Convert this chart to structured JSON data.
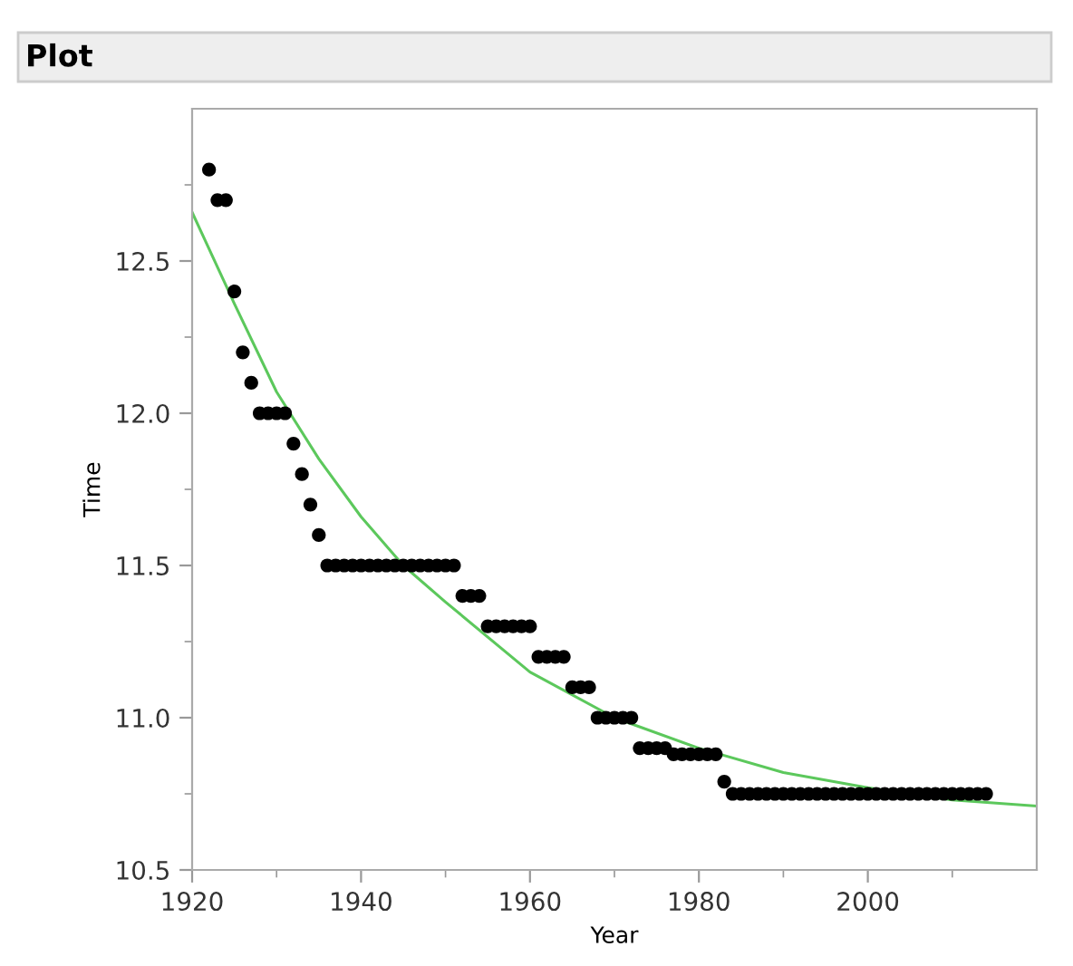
{
  "chart_data": {
    "type": "scatter",
    "title": "Plot",
    "xlabel": "Year",
    "ylabel": "Time",
    "xlim": [
      1920,
      2020
    ],
    "ylim": [
      10.5,
      13.0
    ],
    "xticks": [
      1920,
      {
        "value": 1930,
        "label": null
      },
      1940,
      {
        "value": 1950,
        "label": null
      },
      1960,
      {
        "value": 1970,
        "label": null
      },
      1980,
      {
        "value": 1990,
        "label": null
      },
      2000,
      {
        "value": 2010,
        "label": null
      }
    ],
    "yticks": [
      10.5,
      {
        "value": 10.75,
        "label": null
      },
      {
        "value": 11.0,
        "label": "11.0"
      },
      {
        "value": 11.25,
        "label": null
      },
      11.5,
      {
        "value": 11.75,
        "label": null
      },
      {
        "value": 12.0,
        "label": "12.0"
      },
      {
        "value": 12.25,
        "label": null
      },
      12.5,
      {
        "value": 12.75,
        "label": null
      }
    ],
    "grid": false,
    "marker": "circle",
    "series": [
      {
        "color": "#000000",
        "x": [
          1922,
          1923,
          1924,
          1925,
          1926,
          1927,
          1928,
          1929,
          1930,
          1931,
          1932,
          1933,
          1934,
          1935,
          1936,
          1937,
          1938,
          1939,
          1940,
          1941,
          1942,
          1943,
          1944,
          1945,
          1946,
          1947,
          1948,
          1949,
          1950,
          1951,
          1952,
          1953,
          1954,
          1955,
          1956,
          1957,
          1958,
          1959,
          1960,
          1961,
          1962,
          1963,
          1964,
          1965,
          1966,
          1967,
          1968,
          1969,
          1970,
          1971,
          1972,
          1973,
          1974,
          1975,
          1976,
          1977,
          1978,
          1979,
          1980,
          1981,
          1982,
          1983,
          1984,
          1985,
          1986,
          1987,
          1988,
          1989,
          1990,
          1991,
          1992,
          1993,
          1994,
          1995,
          1996,
          1997,
          1998,
          1999,
          2000,
          2001,
          2002,
          2003,
          2004,
          2005,
          2006,
          2007,
          2008,
          2009,
          2010,
          2011,
          2012,
          2013,
          2014
        ],
        "values": [
          12.8,
          12.7,
          12.7,
          12.4,
          12.2,
          12.1,
          12.0,
          12.0,
          12.0,
          12.0,
          11.9,
          11.8,
          11.7,
          11.6,
          11.5,
          11.5,
          11.5,
          11.5,
          11.5,
          11.5,
          11.5,
          11.5,
          11.5,
          11.5,
          11.5,
          11.5,
          11.5,
          11.5,
          11.5,
          11.5,
          11.4,
          11.4,
          11.4,
          11.3,
          11.3,
          11.3,
          11.3,
          11.3,
          11.3,
          11.2,
          11.2,
          11.2,
          11.2,
          11.1,
          11.1,
          11.1,
          11.0,
          11.0,
          11.0,
          11.0,
          11.0,
          10.9,
          10.9,
          10.9,
          10.9,
          10.88,
          10.88,
          10.88,
          10.88,
          10.88,
          10.88,
          10.79,
          10.75,
          10.75,
          10.75,
          10.75,
          10.75,
          10.75,
          10.75,
          10.75,
          10.75,
          10.75,
          10.75,
          10.75,
          10.75,
          10.75,
          10.75,
          10.75,
          10.75,
          10.75,
          10.75,
          10.75,
          10.75,
          10.75,
          10.75,
          10.75,
          10.75,
          10.75,
          10.75,
          10.75,
          10.75,
          10.75,
          10.75
        ]
      },
      {
        "type": "line",
        "color": "#5cc85c",
        "marker": "none",
        "line_style": "solid",
        "x": [
          1920,
          1925,
          1930,
          1935,
          1940,
          1945,
          1950,
          1960,
          1970,
          1980,
          1990,
          2000,
          2010,
          2020
        ],
        "values": [
          12.66,
          12.36,
          12.07,
          11.85,
          11.66,
          11.5,
          11.38,
          11.15,
          11.0,
          10.9,
          10.82,
          10.77,
          10.73,
          10.71
        ]
      }
    ]
  }
}
